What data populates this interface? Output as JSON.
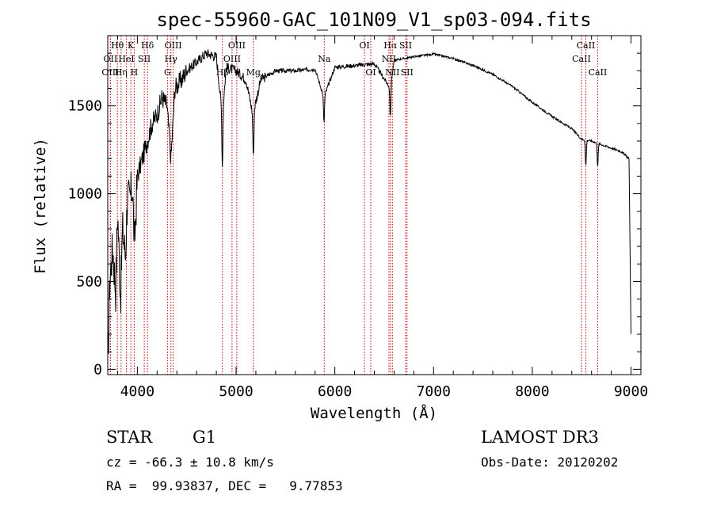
{
  "chart_data": {
    "type": "line",
    "title": "spec-55960-GAC_101N09_V1_sp03-094.fits",
    "xlabel": "Wavelength (Å)",
    "ylabel": "Flux (relative)",
    "xlim": [
      3700,
      9100
    ],
    "ylim": [
      -30,
      1900
    ],
    "xticks": [
      4000,
      5000,
      6000,
      7000,
      8000,
      9000
    ],
    "yticks": [
      0,
      500,
      1000,
      1500
    ],
    "series": [
      {
        "name": "spectrum",
        "anchors": [
          [
            3700,
            0
          ],
          [
            3720,
            500
          ],
          [
            3750,
            700
          ],
          [
            3780,
            450
          ],
          [
            3800,
            900
          ],
          [
            3830,
            400
          ],
          [
            3850,
            800
          ],
          [
            3880,
            650
          ],
          [
            3900,
            1000
          ],
          [
            3920,
            950
          ],
          [
            3950,
            1050
          ],
          [
            3970,
            700
          ],
          [
            4000,
            1100
          ],
          [
            4050,
            1200
          ],
          [
            4100,
            1300
          ],
          [
            4150,
            1400
          ],
          [
            4200,
            1450
          ],
          [
            4250,
            1550
          ],
          [
            4300,
            1500
          ],
          [
            4340,
            1200
          ],
          [
            4380,
            1600
          ],
          [
            4450,
            1650
          ],
          [
            4500,
            1700
          ],
          [
            4600,
            1750
          ],
          [
            4700,
            1800
          ],
          [
            4800,
            1780
          ],
          [
            4860,
            1450
          ],
          [
            4900,
            1720
          ],
          [
            5000,
            1700
          ],
          [
            5100,
            1650
          ],
          [
            5170,
            1450
          ],
          [
            5250,
            1650
          ],
          [
            5400,
            1700
          ],
          [
            5600,
            1700
          ],
          [
            5800,
            1710
          ],
          [
            5890,
            1550
          ],
          [
            6000,
            1720
          ],
          [
            6200,
            1730
          ],
          [
            6400,
            1740
          ],
          [
            6563,
            1600
          ],
          [
            6600,
            1760
          ],
          [
            6800,
            1780
          ],
          [
            7000,
            1795
          ],
          [
            7200,
            1770
          ],
          [
            7400,
            1730
          ],
          [
            7600,
            1680
          ],
          [
            7800,
            1610
          ],
          [
            8000,
            1520
          ],
          [
            8200,
            1440
          ],
          [
            8400,
            1370
          ],
          [
            8500,
            1310
          ],
          [
            8600,
            1300
          ],
          [
            8700,
            1280
          ],
          [
            8800,
            1260
          ],
          [
            8900,
            1240
          ],
          [
            8980,
            1200
          ],
          [
            9000,
            200
          ]
        ],
        "absorption_dips": [
          [
            4861,
            300
          ],
          [
            5175,
            260
          ],
          [
            5890,
            150
          ],
          [
            6563,
            170
          ],
          [
            8542,
            150
          ],
          [
            8662,
            130
          ]
        ]
      }
    ],
    "line_markers": [
      {
        "label": "Hθ",
        "x": 3798,
        "row": 1
      },
      {
        "label": "OII",
        "x": 3727,
        "row": 2
      },
      {
        "label": "OIII",
        "x": 3727,
        "row": 3
      },
      {
        "label": "K",
        "x": 3934,
        "row": 1
      },
      {
        "label": "Hδ",
        "x": 4102,
        "row": 1
      },
      {
        "label": "HeI",
        "x": 3889,
        "row": 2
      },
      {
        "label": "SII",
        "x": 4070,
        "row": 2
      },
      {
        "label": "Hη",
        "x": 3835,
        "row": 3
      },
      {
        "label": "H",
        "x": 3968,
        "row": 3
      },
      {
        "label": "OIII",
        "x": 4363,
        "row": 1
      },
      {
        "label": "Hγ",
        "x": 4340,
        "row": 2
      },
      {
        "label": "G",
        "x": 4305,
        "row": 3
      },
      {
        "label": "OIII",
        "x": 5007,
        "row": 1
      },
      {
        "label": "OIII",
        "x": 4959,
        "row": 2
      },
      {
        "label": "Hβ",
        "x": 4861,
        "row": 3
      },
      {
        "label": "Mg",
        "x": 5175,
        "row": 3
      },
      {
        "label": "Na",
        "x": 5893,
        "row": 2
      },
      {
        "label": "OI",
        "x": 6300,
        "row": 1
      },
      {
        "label": "OI",
        "x": 6364,
        "row": 3
      },
      {
        "label": "Hα",
        "x": 6563,
        "row": 1
      },
      {
        "label": "SII",
        "x": 6717,
        "row": 1
      },
      {
        "label": "NII",
        "x": 6548,
        "row": 2
      },
      {
        "label": "NII",
        "x": 6583,
        "row": 3
      },
      {
        "label": "SII",
        "x": 6731,
        "row": 3
      },
      {
        "label": "CaII",
        "x": 8542,
        "row": 1
      },
      {
        "label": "CaII",
        "x": 8498,
        "row": 2
      },
      {
        "label": "CaII",
        "x": 8662,
        "row": 3
      }
    ]
  },
  "info": {
    "object_class": "STAR",
    "subclass": "G1",
    "survey": "LAMOST DR3",
    "cz_line": "cz = -66.3 ± 10.8 km/s",
    "obs_date_line": "Obs-Date: 20120202",
    "coords_line": "RA =  99.93837, DEC =   9.77853"
  }
}
